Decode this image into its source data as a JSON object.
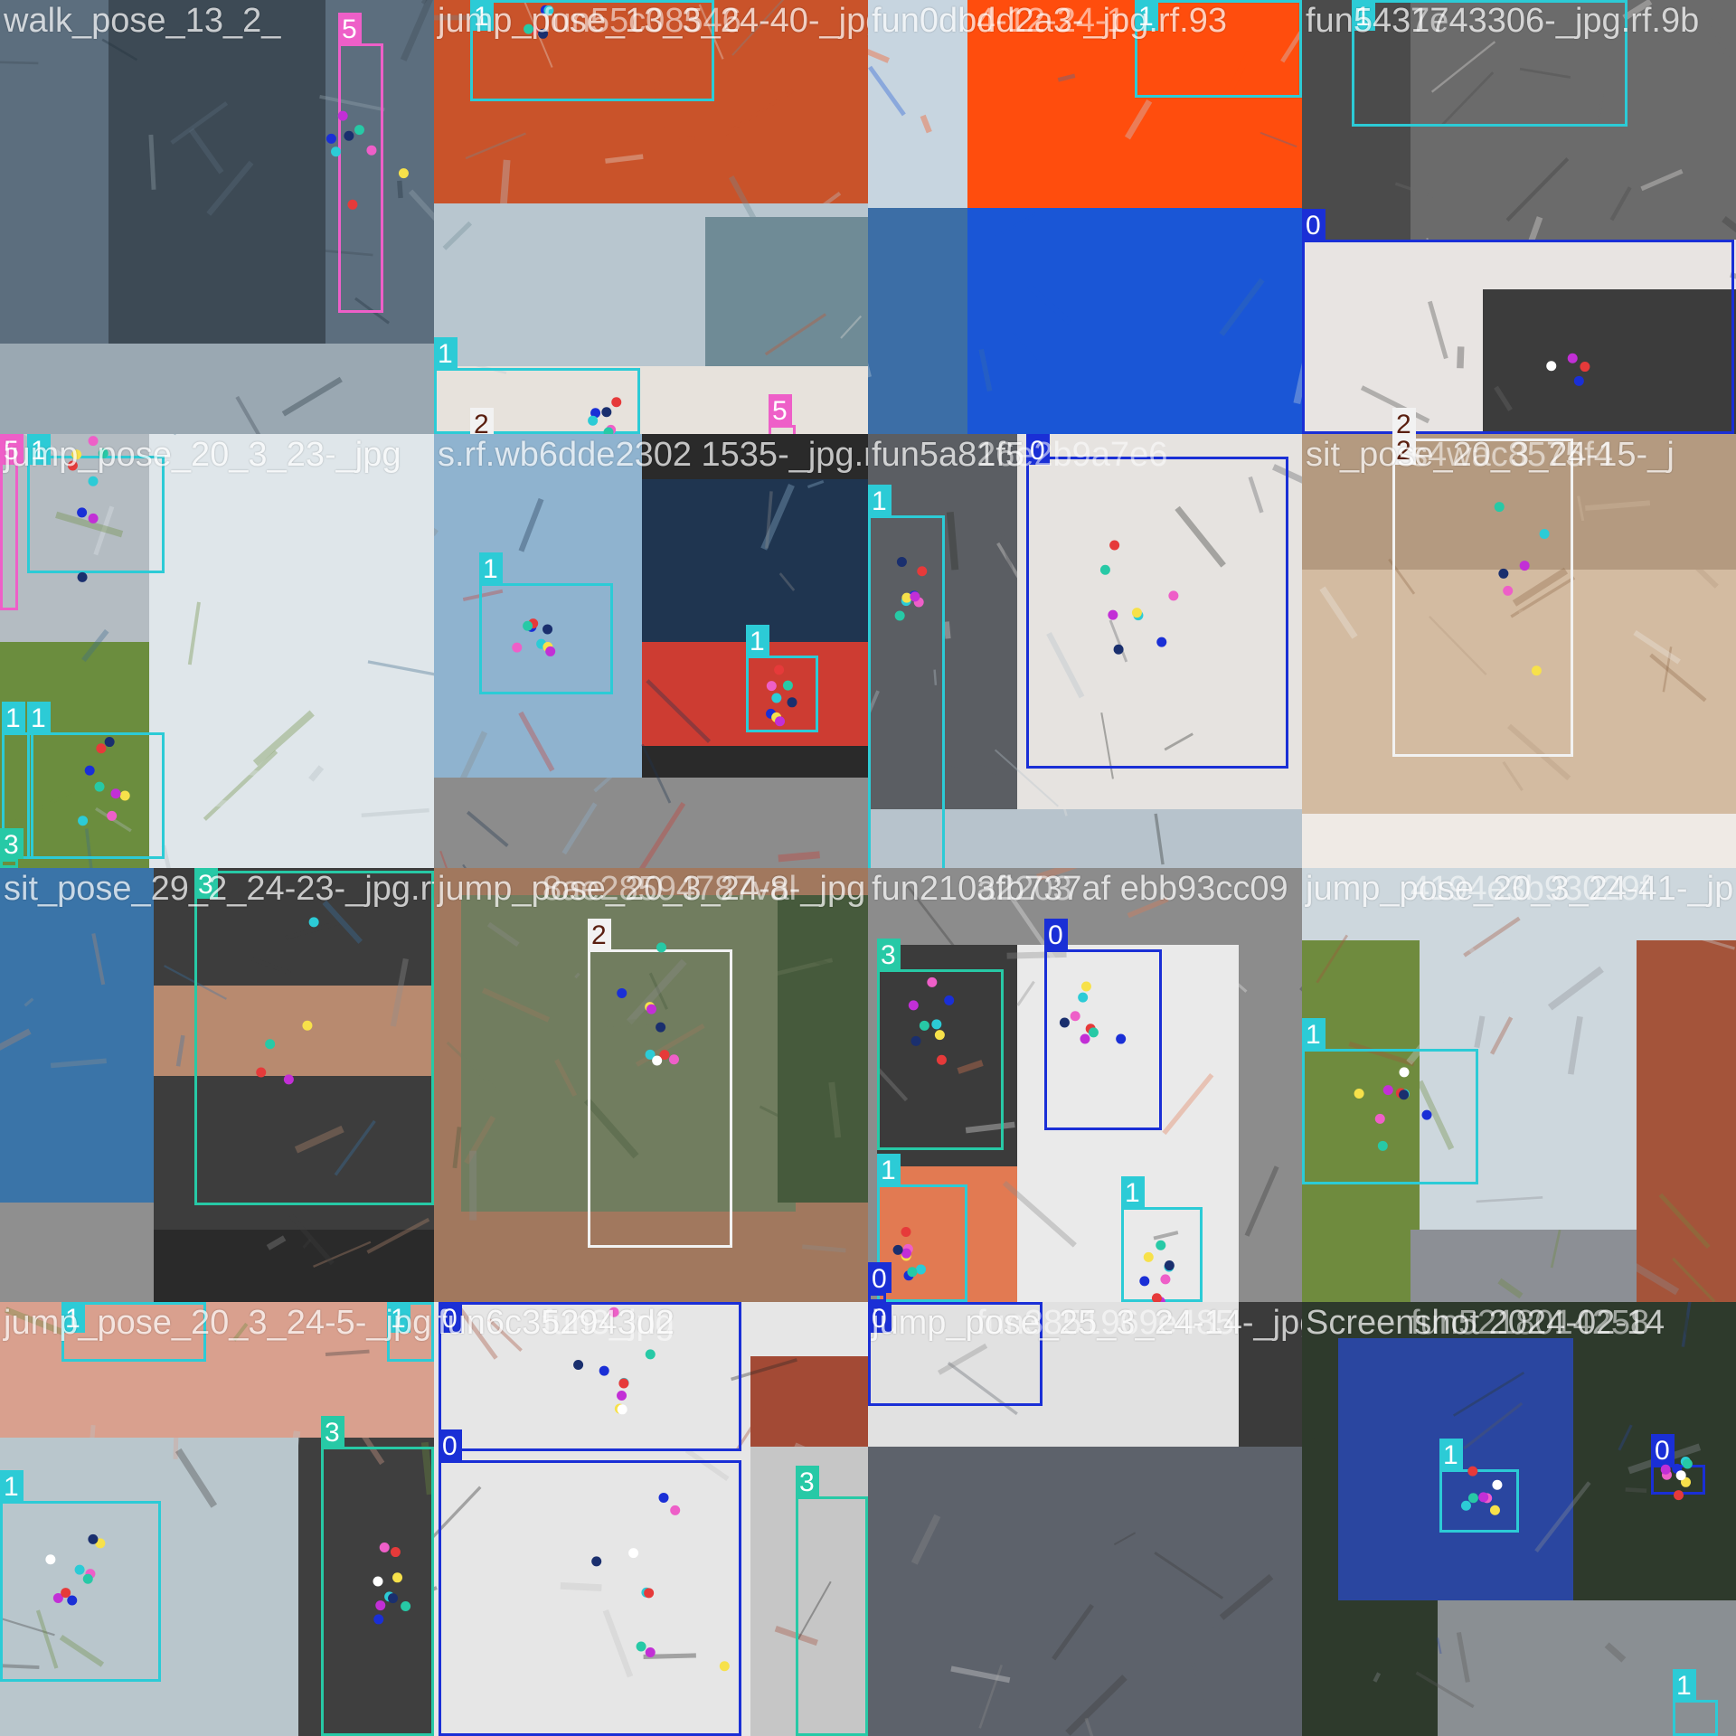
{
  "class_colors": {
    "0": "#1a2fd6",
    "1": "#2ccbd6",
    "2": "#f2f2f2",
    "3": "#27c9a6",
    "5": "#ee5fc8"
  },
  "label_text_colors": {
    "0": "#ffffff",
    "1": "#ffffff",
    "2": "#5a1f10",
    "3": "#ffffff",
    "5": "#ffffff"
  },
  "tiles": [
    {
      "filename": "walk_pose_13_2_",
      "overlap_text": "",
      "palette": [
        "#5c6e7e",
        "#3d4a55",
        "#9aa8b2",
        "#22313d"
      ],
      "boxes": [
        {
          "cls": "5"
        }
      ],
      "keypoint_colors": [
        "#1a2fd6",
        "#ee5fc8",
        "#2ccbd6",
        "#f7e14a",
        "#c22fd6",
        "#e63a3a",
        "#27c9a6",
        "#1a2f6e"
      ]
    },
    {
      "filename": "jump_pose_13_3_24-40-_jpg",
      "overlap_text": "fun55c08546",
      "palette": [
        "#c9532a",
        "#b8c6cf",
        "#6f8b96",
        "#e7e2dc"
      ],
      "boxes": [
        {
          "cls": "1"
        },
        {
          "cls": "1"
        },
        {
          "cls": "2"
        },
        {
          "cls": "5"
        }
      ],
      "keypoint_colors": [
        "#1a2fd6",
        "#ee5fc8",
        "#2ccbd6",
        "#e63a3a",
        "#27c9a6",
        "#1a2f6e"
      ]
    },
    {
      "filename": "fun0dbdd2a3-_jpg.rf.93",
      "overlap_text": "4-12-24-1",
      "palette": [
        "#ff4d0d",
        "#1a56d6",
        "#3c6ea6",
        "#c7d5e0"
      ],
      "boxes": [
        {
          "cls": "1"
        }
      ],
      "keypoint_colors": []
    },
    {
      "filename": "fun5431743306-_jpg.rf.9b",
      "overlap_text": "7e",
      "palette": [
        "#6b6b6b",
        "#4b4b4b",
        "#e8e4e2",
        "#3c3c3c"
      ],
      "boxes": [
        {
          "cls": "1"
        },
        {
          "cls": "0"
        },
        {
          "cls": "2"
        }
      ],
      "keypoint_colors": [
        "#1a2fd6",
        "#e63a3a",
        "#ffffff",
        "#c22fd6"
      ]
    },
    {
      "filename": "jump_pose_20_3_23-_jpg",
      "overlap_text": "",
      "palette": [
        "#dfe6ea",
        "#3d6b8c",
        "#6b8d3e",
        "#b4bcc2"
      ],
      "boxes": [
        {
          "cls": "5"
        },
        {
          "cls": "1"
        },
        {
          "cls": "1"
        },
        {
          "cls": "1"
        },
        {
          "cls": "3"
        }
      ],
      "keypoint_colors": [
        "#1a2fd6",
        "#ee5fc8",
        "#2ccbd6",
        "#f7e14a",
        "#c22fd6",
        "#e63a3a",
        "#27c9a6",
        "#1a2f6e"
      ]
    },
    {
      "filename": "s.rf.wb6dde2302 1535-_jpg.rf.7",
      "overlap_text": "",
      "palette": [
        "#8fb3cf",
        "#1f3550",
        "#cd3c32",
        "#8c8c8c"
      ],
      "boxes": [
        {
          "cls": "1"
        },
        {
          "cls": "1"
        }
      ],
      "keypoint_colors": [
        "#1a2fd6",
        "#ee5fc8",
        "#2ccbd6",
        "#f7e14a",
        "#c22fd6",
        "#e63a3a",
        "#27c9a6",
        "#1a2f6e"
      ]
    },
    {
      "filename": "fun5a81f5",
      "overlap_text": "26e2b9a7e6",
      "palette": [
        "#e6e3e0",
        "#5b5e63",
        "#2b2f2a",
        "#b7c3cc"
      ],
      "boxes": [
        {
          "cls": "1"
        },
        {
          "cls": "0"
        }
      ],
      "keypoint_colors": [
        "#1a2fd6",
        "#ee5fc8",
        "#2ccbd6",
        "#f7e14a",
        "#c22fd6",
        "#e63a3a",
        "#27c9a6",
        "#1a2f6e"
      ]
    },
    {
      "filename": "sit_pose_20_3_24-15-_j",
      "overlap_text": "s4wac8575f4",
      "palette": [
        "#b49a80",
        "#d3bba1",
        "#8f6a49",
        "#efeae5"
      ],
      "boxes": [
        {
          "cls": "2"
        }
      ],
      "keypoint_colors": [
        "#f7e14a",
        "#27c9a6",
        "#1a2f6e",
        "#2ccbd6",
        "#c22fd6",
        "#ee5fc8"
      ]
    },
    {
      "filename": "sit_pose_29_2_24-23-_jpg.rf",
      "overlap_text": "",
      "palette": [
        "#3a74a8",
        "#3d3d3d",
        "#b88a6f",
        "#8f8f8f"
      ],
      "boxes": [
        {
          "cls": "3"
        }
      ],
      "keypoint_colors": [
        "#e63a3a",
        "#27c9a6",
        "#f7e14a",
        "#c22fd6",
        "#2ccbd6"
      ]
    },
    {
      "filename": "jump_pose_20_3_24-8-_jpg.rf.a",
      "overlap_text": "8ae28594787val",
      "palette": [
        "#717d5f",
        "#465a3c",
        "#8c8c8c",
        "#a1785e"
      ],
      "boxes": [
        {
          "cls": "2"
        }
      ],
      "keypoint_colors": [
        "#1a2fd6",
        "#ee5fc8",
        "#2ccbd6",
        "#f7e14a",
        "#c22fd6",
        "#e63a3a",
        "#27c9a6",
        "#1a2f6e",
        "#ffffff"
      ]
    },
    {
      "filename": "fun2103fb737af ebb93cc09",
      "overlap_text": "a2203",
      "palette": [
        "#8c8c8c",
        "#eaeaea",
        "#e27a52",
        "#3b3b3b"
      ],
      "boxes": [
        {
          "cls": "3"
        },
        {
          "cls": "0"
        },
        {
          "cls": "1"
        },
        {
          "cls": "1"
        },
        {
          "cls": "0"
        }
      ],
      "keypoint_colors": [
        "#1a2fd6",
        "#ee5fc8",
        "#2ccbd6",
        "#f7e14a",
        "#c22fd6",
        "#e63a3a",
        "#27c9a6",
        "#1a2f6e"
      ]
    },
    {
      "filename": "jump_pose_20_3_24-41-_jp",
      "overlap_text": "4194e3b93029f",
      "palette": [
        "#cdd7dd",
        "#6f8b3e",
        "#8c8f95",
        "#a4543a"
      ],
      "boxes": [
        {
          "cls": "1"
        }
      ],
      "keypoint_colors": [
        "#1a2fd6",
        "#ee5fc8",
        "#2ccbd6",
        "#f7e14a",
        "#c22fd6",
        "#e63a3a",
        "#27c9a6",
        "#1a2f6e",
        "#ffffff"
      ]
    },
    {
      "filename": "jump_pose_20_3_24-5-_jpg",
      "overlap_text": "",
      "palette": [
        "#d9a08e",
        "#b9c6cc",
        "#6c8d3e",
        "#3f3f3f"
      ],
      "boxes": [
        {
          "cls": "1"
        },
        {
          "cls": "1"
        },
        {
          "cls": "1"
        },
        {
          "cls": "3"
        }
      ],
      "keypoint_colors": [
        "#1a2fd6",
        "#ee5fc8",
        "#2ccbd6",
        "#f7e14a",
        "#c22fd6",
        "#e63a3a",
        "#27c9a6",
        "#1a2f6e",
        "#ffffff"
      ]
    },
    {
      "filename": "fun6c352943d2",
      "overlap_text": "fun8_jpg",
      "palette": [
        "#e6e6e6",
        "#262626",
        "#c6c6c6",
        "#a34a35"
      ],
      "boxes": [
        {
          "cls": "0"
        },
        {
          "cls": "0"
        },
        {
          "cls": "3"
        }
      ],
      "keypoint_colors": [
        "#1a2fd6",
        "#ee5fc8",
        "#2ccbd6",
        "#f7e14a",
        "#c22fd6",
        "#e63a3a",
        "#27c9a6",
        "#1a2f6e",
        "#ffffff"
      ]
    },
    {
      "filename": "jump_pose_25_3_24-14-_jpg",
      "overlap_text": "fun3851969e485",
      "palette": [
        "#e1e1e1",
        "#5d626b",
        "#3b3b3b",
        "#8c8c8c"
      ],
      "boxes": [
        {
          "cls": "0"
        }
      ],
      "keypoint_colors": []
    },
    {
      "filename": "Screenshot 2024-02-14",
      "overlap_text": "fun5218014258",
      "palette": [
        "#2a46a0",
        "#5a5a5a",
        "#2e3a2c",
        "#8a8f93"
      ],
      "boxes": [
        {
          "cls": "1"
        },
        {
          "cls": "0"
        },
        {
          "cls": "1"
        }
      ],
      "keypoint_colors": [
        "#1a2fd6",
        "#ee5fc8",
        "#2ccbd6",
        "#f7e14a",
        "#c22fd6",
        "#e63a3a",
        "#27c9a6",
        "#ffffff"
      ]
    }
  ]
}
